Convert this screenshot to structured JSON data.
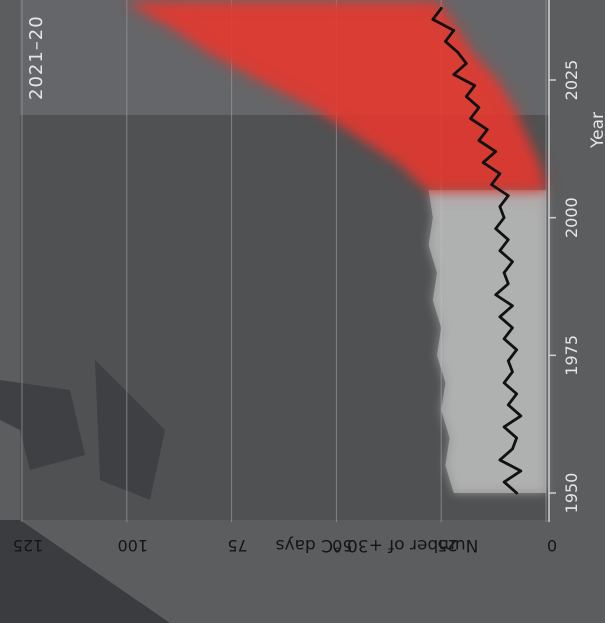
{
  "chart_data": {
    "type": "line",
    "orientation": "rotated-90",
    "xlabel": "Year",
    "ylabel": "Number of +30 °C days",
    "xlim": [
      1948,
      2039
    ],
    "ylim": [
      0,
      125
    ],
    "x_ticks": [
      1950,
      1975,
      2000,
      2025
    ],
    "y_ticks": [
      0,
      25,
      50,
      75,
      100,
      125
    ],
    "annotation": "2021–20",
    "grid": true,
    "observed_band": {
      "color": "#c8c8c8",
      "x": [
        1950,
        1955,
        1960,
        1965,
        1970,
        1975,
        1980,
        1985,
        1990,
        1995,
        2000,
        2005
      ],
      "low": [
        0,
        0,
        0,
        0,
        0,
        0,
        0,
        0,
        0,
        0,
        0,
        0
      ],
      "high": [
        22,
        24,
        23,
        25,
        24,
        26,
        25,
        27,
        26,
        28,
        27,
        28
      ]
    },
    "projection_band": {
      "color": "#e8382f",
      "x": [
        2005,
        2010,
        2015,
        2020,
        2025,
        2030,
        2035,
        2039
      ],
      "low": [
        0,
        2,
        5,
        8,
        12,
        18,
        22,
        26
      ],
      "high": [
        28,
        35,
        45,
        55,
        68,
        80,
        90,
        100
      ]
    },
    "series": [
      {
        "color": "#111111",
        "x": [
          1950,
          1952,
          1954,
          1956,
          1958,
          1960,
          1962,
          1964,
          1966,
          1968,
          1970,
          1972,
          1974,
          1976,
          1978,
          1980,
          1982,
          1984,
          1986,
          1988,
          1990,
          1992,
          1994,
          1996,
          1998,
          2000,
          2002,
          2004,
          2006,
          2008,
          2010,
          2012,
          2014,
          2016,
          2018,
          2020,
          2022,
          2024,
          2026,
          2028,
          2030,
          2032,
          2034,
          2036,
          2038
        ],
        "values": [
          7,
          10,
          6,
          11,
          8,
          7,
          10,
          6,
          9,
          7,
          10,
          8,
          9,
          7,
          10,
          8,
          11,
          8,
          12,
          9,
          10,
          8,
          11,
          9,
          12,
          10,
          11,
          9,
          13,
          11,
          15,
          12,
          16,
          14,
          18,
          16,
          19,
          17,
          22,
          19,
          21,
          24,
          22,
          27,
          25
        ]
      }
    ]
  }
}
